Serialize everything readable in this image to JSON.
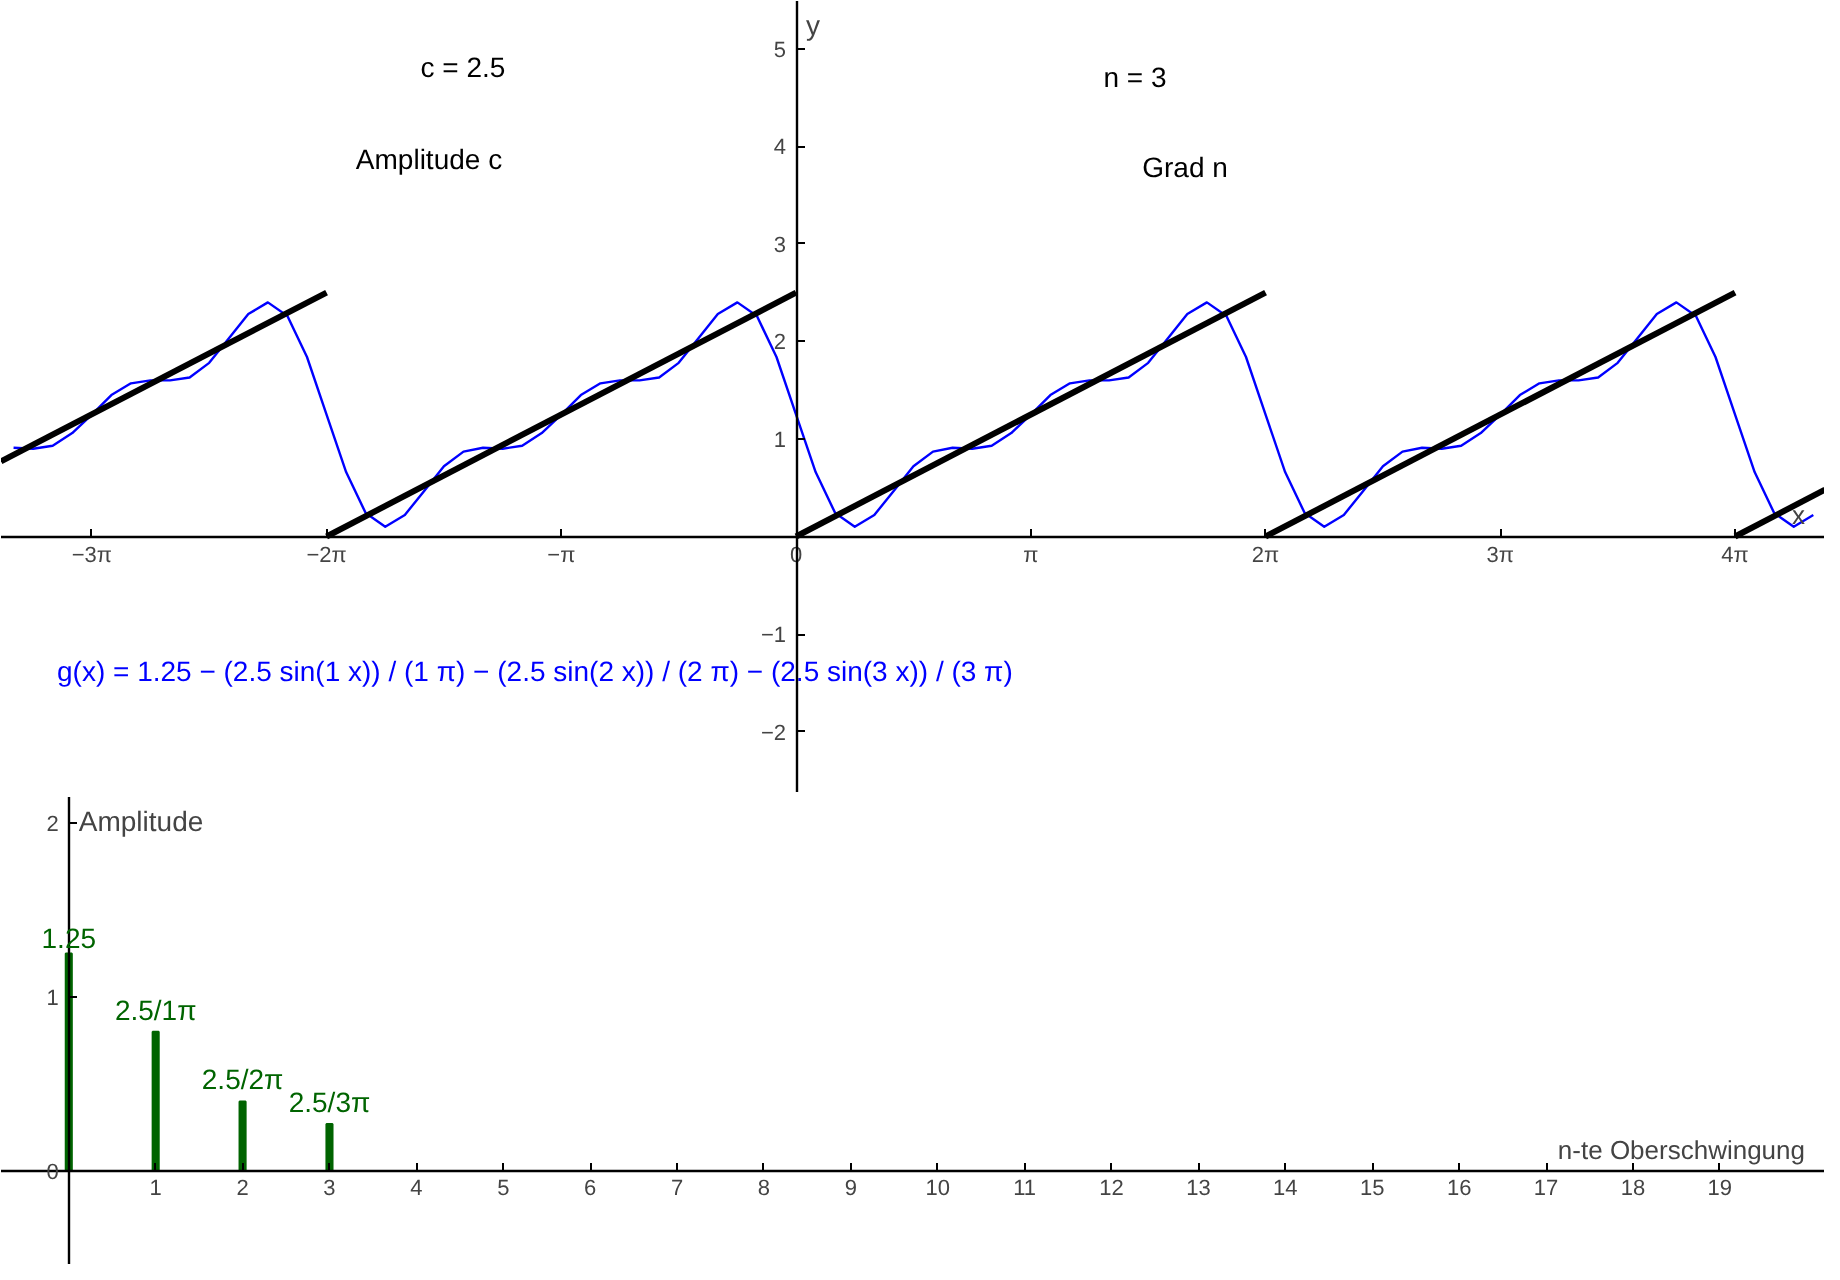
{
  "chart_data": [
    {
      "type": "line",
      "xlabel": "x",
      "ylabel": "y",
      "grid": false,
      "xlim": [
        -10.64,
        13.77
      ],
      "ylim": [
        -2.63,
        5.49
      ],
      "xticks": [
        {
          "value": -9.4248,
          "label": "−3π"
        },
        {
          "value": -6.2832,
          "label": "−2π"
        },
        {
          "value": -3.1416,
          "label": "−π"
        },
        {
          "value": 0,
          "label": "0"
        },
        {
          "value": 3.1416,
          "label": "π"
        },
        {
          "value": 6.2832,
          "label": "2π"
        },
        {
          "value": 9.4248,
          "label": "3π"
        },
        {
          "value": 12.5664,
          "label": "4π"
        }
      ],
      "yticks": [
        {
          "value": -2,
          "label": "−2"
        },
        {
          "value": -1,
          "label": "−1"
        },
        1,
        2,
        3,
        4,
        5
      ],
      "annotations": [
        "c = 2.5",
        "Amplitude c",
        "n = 3",
        "Grad n",
        "g(x) = 1.25 − (2.5 sin(1 x)) / (1 π) − (2.5 sin(2 x)) / (2 π) − (2.5 sin(3 x)) / (3 π)"
      ],
      "series": [
        {
          "type": "line",
          "color": "#0000ff",
          "x": [
            -10.472,
            -10.2102,
            -9.9484,
            -9.6866,
            -9.4248,
            -9.163,
            -8.9012,
            -8.6394,
            -8.3776,
            -8.1158,
            -7.854,
            -7.5922,
            -7.3304,
            -7.0686,
            -6.8068,
            -6.545,
            -6.2832,
            -6.0214,
            -5.7596,
            -5.4978,
            -5.236,
            -4.9742,
            -4.7124,
            -4.4506,
            -4.1888,
            -3.927,
            -3.6652,
            -3.4034,
            -3.1416,
            -2.8798,
            -2.618,
            -2.3562,
            -2.0944,
            -1.8326,
            -1.5708,
            -1.309,
            -1.0472,
            -0.7854,
            -0.5236,
            -0.2618,
            0,
            0.2618,
            0.5236,
            0.7854,
            1.0472,
            1.309,
            1.5708,
            1.8326,
            2.0944,
            2.3562,
            2.618,
            2.8798,
            3.1416,
            3.4034,
            3.6652,
            3.927,
            4.1888,
            4.4506,
            4.7124,
            4.9742,
            5.236,
            5.4978,
            5.7596,
            6.0214,
            6.2832,
            6.545,
            6.8068,
            7.0686,
            7.3304,
            7.5922,
            7.854,
            8.1158,
            8.3776,
            8.6394,
            8.9012,
            9.163,
            9.4248,
            9.6866,
            9.9484,
            10.2102,
            10.472,
            10.7338,
            10.9956,
            11.2574,
            11.5192,
            11.781,
            12.0428,
            12.3046,
            12.5664,
            12.8282,
            13.09,
            13.3518,
            13.6136
          ],
          "values": [
            0.91,
            0.9,
            0.93,
            1.06,
            1.25,
            1.45,
            1.57,
            1.6,
            1.6,
            1.63,
            1.78,
            2.03,
            2.28,
            2.4,
            2.26,
            1.84,
            1.25,
            0.66,
            0.24,
            0.1,
            0.22,
            0.47,
            0.72,
            0.87,
            0.91,
            0.9,
            0.93,
            1.06,
            1.25,
            1.45,
            1.57,
            1.6,
            1.6,
            1.63,
            1.78,
            2.03,
            2.28,
            2.4,
            2.26,
            1.84,
            1.25,
            0.66,
            0.24,
            0.1,
            0.22,
            0.47,
            0.72,
            0.87,
            0.91,
            0.9,
            0.93,
            1.06,
            1.25,
            1.45,
            1.57,
            1.6,
            1.6,
            1.63,
            1.78,
            2.03,
            2.28,
            2.4,
            2.26,
            1.84,
            1.25,
            0.66,
            0.24,
            0.1,
            0.22,
            0.47,
            0.72,
            0.87,
            0.91,
            0.9,
            0.93,
            1.06,
            1.25,
            1.45,
            1.57,
            1.6,
            1.6,
            1.63,
            1.78,
            2.03,
            2.28,
            2.4,
            2.26,
            1.84,
            1.25,
            0.66,
            0.24,
            0.1,
            0.22
          ]
        },
        {
          "type": "line",
          "color": "#000000",
          "x": [
            -10.64,
            -6.2832
          ],
          "values": [
            0.77,
            2.5
          ]
        },
        {
          "type": "line",
          "color": "#000000",
          "x": [
            -6.2832,
            0
          ],
          "values": [
            0,
            2.5
          ]
        },
        {
          "type": "line",
          "color": "#000000",
          "x": [
            0,
            6.2832
          ],
          "values": [
            0,
            2.5
          ]
        },
        {
          "type": "line",
          "color": "#000000",
          "x": [
            6.2832,
            12.5664
          ],
          "values": [
            0,
            2.5
          ]
        },
        {
          "type": "line",
          "color": "#000000",
          "x": [
            12.5664,
            13.77
          ],
          "values": [
            0,
            0.48
          ]
        }
      ]
    },
    {
      "type": "bar",
      "xlabel": "n-te Oberschwingung",
      "ylabel": "Amplitude",
      "grid": false,
      "xlim": [
        -0.78,
        20.21
      ],
      "ylim": [
        -0.54,
        2.15
      ],
      "xticks": [
        1,
        2,
        3,
        4,
        5,
        6,
        7,
        8,
        9,
        10,
        11,
        12,
        13,
        14,
        15,
        16,
        17,
        18,
        19
      ],
      "yticks": [
        0,
        1,
        2
      ],
      "x": [
        0,
        1,
        2,
        3
      ],
      "values": [
        1.25,
        0.8,
        0.4,
        0.27
      ],
      "color": "#006400",
      "value_labels": [
        "1.25",
        "2.5/1π",
        "2.5/2π",
        "2.5/3π"
      ]
    }
  ]
}
